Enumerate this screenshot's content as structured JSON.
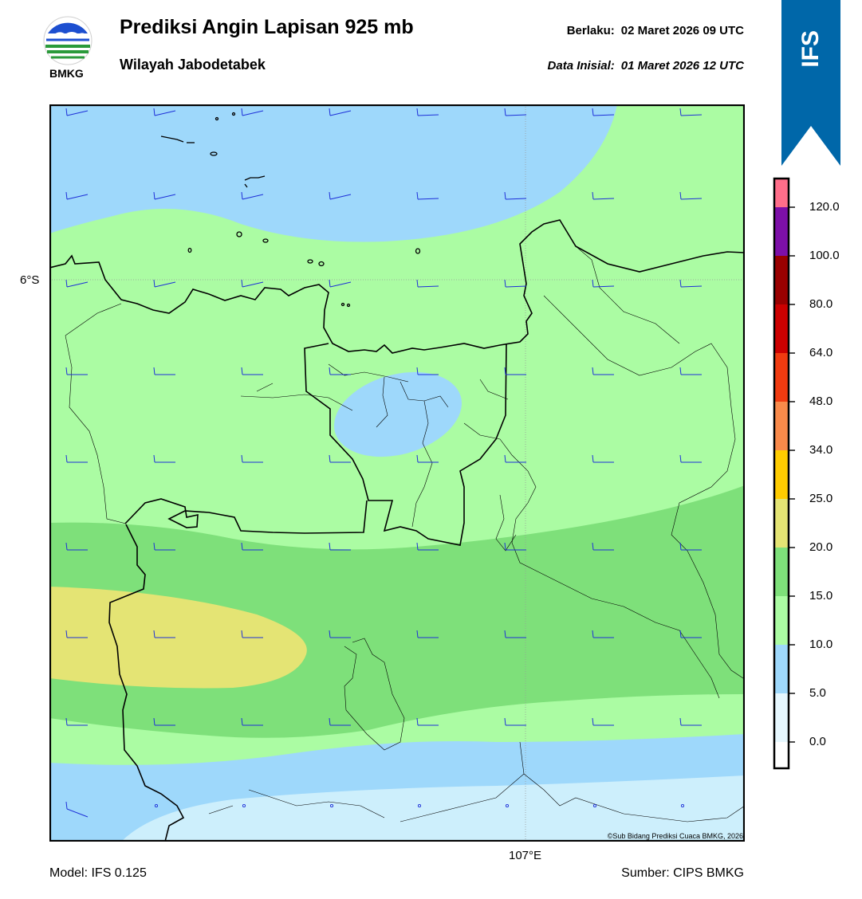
{
  "header": {
    "title": "Prediksi Angin Lapisan 925 mb",
    "subtitle": "Wilayah Jabodetabek",
    "valid_label": "Berlaku:",
    "valid_value": "02 Maret 2026 09 UTC",
    "init_label": "Data Inisial:",
    "init_value": "01 Maret 2026 12 UTC"
  },
  "logo": {
    "text": "BMKG",
    "icon": "bmkg-logo"
  },
  "badge": {
    "text": "IFS",
    "color": "#0067a9"
  },
  "map": {
    "lat_label": "6°S",
    "lon_label": "107°E",
    "copyright": "©Sub Bidang Prediksi Cuaca BMKG, 2026",
    "colors": {
      "c0_5": "#cdeffc",
      "c5_10": "#9ed8fb",
      "c10_15": "#abfca3",
      "c15_20": "#7ee07a",
      "c20_25": "#e4e474",
      "barb": "#1d2fd8"
    }
  },
  "colorbar": {
    "levels": [
      "0.0",
      "5.0",
      "10.0",
      "15.0",
      "20.0",
      "25.0",
      "34.0",
      "48.0",
      "64.0",
      "80.0",
      "100.0",
      "120.0"
    ],
    "colors": [
      "#e6f7fe",
      "#9ed8fb",
      "#abfca3",
      "#7ee07a",
      "#e4e474",
      "#ffcc00",
      "#f98a4a",
      "#f03b10",
      "#cc0000",
      "#990000",
      "#7d0fa8",
      "#ff6e8a"
    ]
  },
  "footer": {
    "model": "Model: IFS 0.125",
    "source": "Sumber: CIPS BMKG"
  }
}
